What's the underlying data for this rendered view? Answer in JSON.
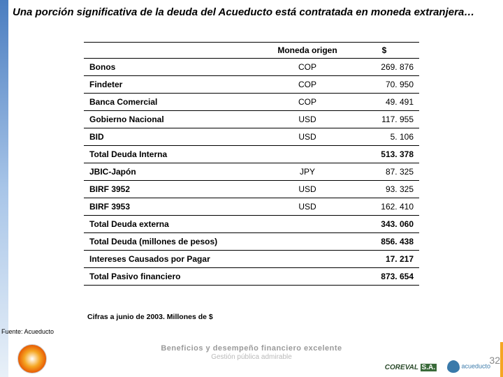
{
  "title": "Una porción significativa de la deuda del Acueducto está contratada en moneda extranjera…",
  "table": {
    "headers": [
      "",
      "Moneda origen",
      "$"
    ],
    "rows": [
      {
        "label": "Bonos",
        "currency": "COP",
        "value": "269. 876",
        "total": false
      },
      {
        "label": "Findeter",
        "currency": "COP",
        "value": "70. 950",
        "total": false
      },
      {
        "label": "Banca Comercial",
        "currency": "COP",
        "value": "49. 491",
        "total": false
      },
      {
        "label": "Gobierno Nacional",
        "currency": "USD",
        "value": "117. 955",
        "total": false
      },
      {
        "label": "BID",
        "currency": "USD",
        "value": "5. 106",
        "total": false
      },
      {
        "label": "Total Deuda Interna",
        "currency": "",
        "value": "513. 378",
        "total": true
      },
      {
        "label": "JBIC-Japón",
        "currency": "JPY",
        "value": "87. 325",
        "total": false
      },
      {
        "label": "BIRF 3952",
        "currency": "USD",
        "value": "93. 325",
        "total": false
      },
      {
        "label": "BIRF 3953",
        "currency": "USD",
        "value": "162. 410",
        "total": false
      },
      {
        "label": "Total Deuda externa",
        "currency": "",
        "value": "343. 060",
        "total": true
      },
      {
        "label": "Total Deuda (millones de pesos)",
        "currency": "",
        "value": "856. 438",
        "total": true
      },
      {
        "label": "Intereses Causados por Pagar",
        "currency": "",
        "value": "17. 217",
        "total": true
      },
      {
        "label": "Total Pasivo financiero",
        "currency": "",
        "value": "873. 654",
        "total": true
      }
    ]
  },
  "cifras_note": "Cifras a junio de 2003. Millones de $",
  "fuente": "Fuente: Acueducto",
  "footer": {
    "line1": "Beneficios y desempeño financiero excelente",
    "line2": "Gestión pública admirable"
  },
  "logos": {
    "coreval": "COREVAL",
    "coreval_sa": "S.A.",
    "acueducto": "acueducto"
  },
  "page_number": "32"
}
